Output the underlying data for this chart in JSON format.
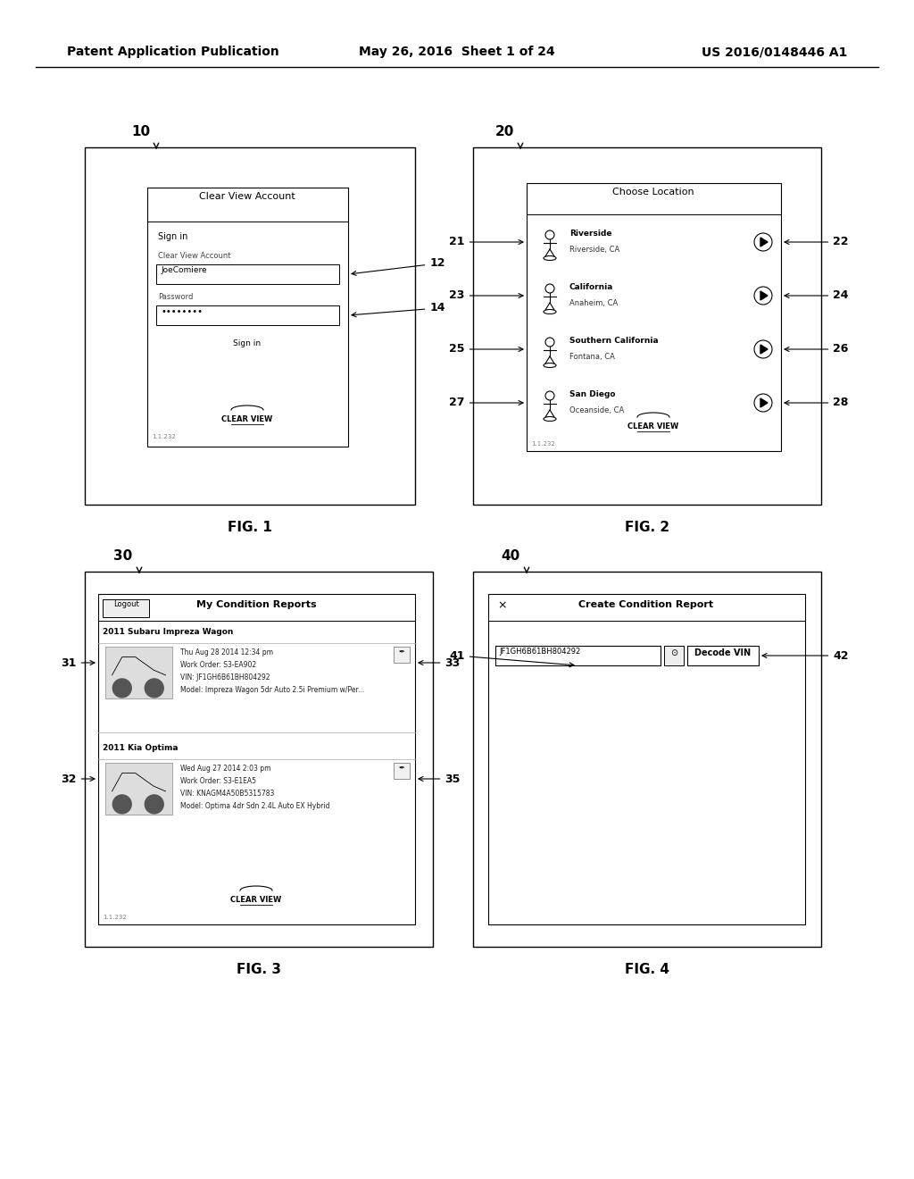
{
  "bg_color": "#ffffff",
  "header_left": "Patent Application Publication",
  "header_center": "May 26, 2016  Sheet 1 of 24",
  "header_right": "US 2016/0148446 A1",
  "fig2_locations": [
    {
      "line1": "Riverside",
      "line2": "Riverside, CA"
    },
    {
      "line1": "California",
      "line2": "Anaheim, CA"
    },
    {
      "line1": "Southern California",
      "line2": "Fontana, CA"
    },
    {
      "line1": "San Diego",
      "line2": "Oceanside, CA"
    }
  ],
  "fig2_ref_left": [
    "21",
    "23",
    "25",
    "27"
  ],
  "fig2_ref_right": [
    "22",
    "24",
    "26",
    "28"
  ],
  "fig3_items": [
    {
      "car": "2011 Subaru Impreza Wagon",
      "date": "Thu Aug 28 2014 12:34 pm",
      "work_order": "Work Order: S3-EA902",
      "vin": "VIN: JF1GH6B61BH804292",
      "model": "Model: Impreza Wagon 5dr Auto 2.5i Premium w/Per..."
    },
    {
      "car": "2011 Kia Optima",
      "date": "Wed Aug 27 2014 2:03 pm",
      "work_order": "Work Order: S3-E1EA5",
      "vin": "VIN: KNAGM4A50B5315783",
      "model": "Model: Optima 4dr Sdn 2.4L Auto EX Hybrid"
    }
  ],
  "fig4_vin": "JF1GH6B61BH804292",
  "fig4_btn": "Decode VIN"
}
